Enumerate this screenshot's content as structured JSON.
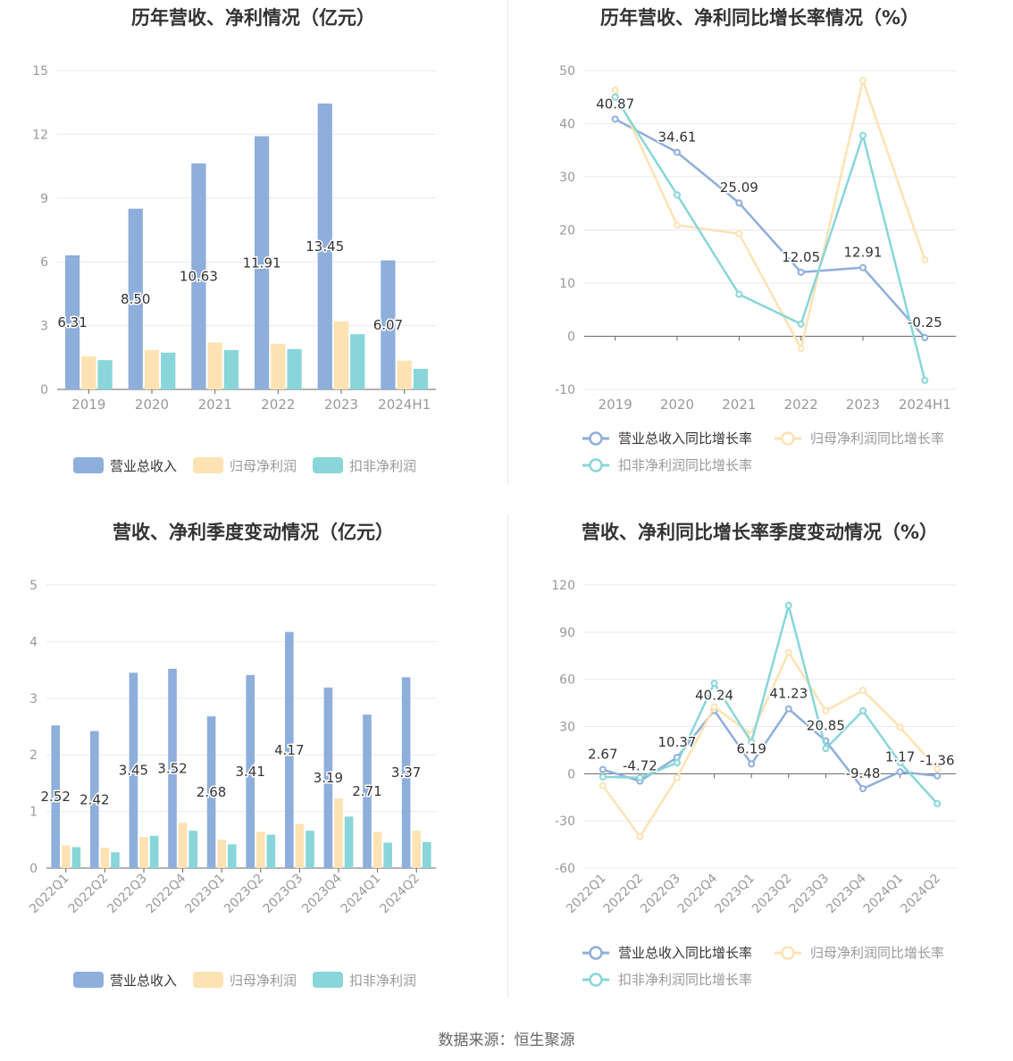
{
  "footer": "数据来源：恒生聚源",
  "colors": {
    "revenue": "#8eaedb",
    "parent_net": "#fde2b3",
    "deducted_net": "#88d6d9",
    "rev_line": "#8eaedb",
    "parent_line": "#fde2b3",
    "deducted_line": "#88d6d9"
  },
  "chart_data": [
    {
      "type": "bar",
      "title": "历年营收、净利情况（亿元）",
      "categories": [
        "2019",
        "2020",
        "2021",
        "2022",
        "2023",
        "2024H1"
      ],
      "ylim": [
        0,
        15
      ],
      "yticks": [
        0,
        3,
        6,
        9,
        12,
        15
      ],
      "grid": true,
      "legend_position": "bottom",
      "series": [
        {
          "name": "营业总收入",
          "values": [
            6.31,
            8.5,
            10.63,
            11.91,
            13.45,
            6.07
          ],
          "labels": [
            "6.31",
            "8.50",
            "10.63",
            "11.91",
            "13.45",
            "6.07"
          ]
        },
        {
          "name": "归母净利润",
          "values": [
            1.55,
            1.85,
            2.2,
            2.15,
            3.2,
            1.35
          ]
        },
        {
          "name": "扣非净利润",
          "values": [
            1.38,
            1.73,
            1.85,
            1.9,
            2.6,
            0.97
          ]
        }
      ]
    },
    {
      "type": "line",
      "title": "历年营收、净利同比增长率情况（%）",
      "categories": [
        "2019",
        "2020",
        "2021",
        "2022",
        "2023",
        "2024H1"
      ],
      "ylim": [
        -10,
        50
      ],
      "yticks": [
        -10,
        0,
        10,
        20,
        30,
        40,
        50
      ],
      "grid": true,
      "legend_position": "bottom",
      "series": [
        {
          "name": "营业总收入同比增长率",
          "values": [
            40.87,
            34.61,
            25.09,
            12.05,
            12.91,
            -0.25
          ],
          "labels": [
            "40.87",
            "34.61",
            "25.09",
            "12.05",
            "12.91",
            "-0.25"
          ]
        },
        {
          "name": "归母净利润同比增长率",
          "values": [
            46.3,
            20.9,
            19.3,
            -2.3,
            48.1,
            14.4
          ]
        },
        {
          "name": "扣非净利润同比增长率",
          "values": [
            45.0,
            26.6,
            7.9,
            2.3,
            37.8,
            -8.3
          ]
        }
      ]
    },
    {
      "type": "bar",
      "title": "营收、净利季度变动情况（亿元）",
      "categories": [
        "2022Q1",
        "2022Q2",
        "2022Q3",
        "2022Q4",
        "2023Q1",
        "2023Q2",
        "2023Q3",
        "2023Q4",
        "2024Q1",
        "2024Q2"
      ],
      "ylim": [
        0,
        5
      ],
      "yticks": [
        0,
        1,
        2,
        3,
        4,
        5
      ],
      "grid": true,
      "legend_position": "bottom",
      "series": [
        {
          "name": "营业总收入",
          "values": [
            2.52,
            2.42,
            3.45,
            3.52,
            2.68,
            3.41,
            4.17,
            3.19,
            2.71,
            3.37
          ],
          "labels": [
            "2.52",
            "2.42",
            "3.45",
            "3.52",
            "2.68",
            "3.41",
            "4.17",
            "3.19",
            "2.71",
            "3.37"
          ]
        },
        {
          "name": "归母净利润",
          "values": [
            0.4,
            0.36,
            0.55,
            0.8,
            0.5,
            0.64,
            0.78,
            1.23,
            0.64,
            0.66
          ]
        },
        {
          "name": "扣非净利润",
          "values": [
            0.37,
            0.28,
            0.57,
            0.66,
            0.42,
            0.59,
            0.66,
            0.91,
            0.45,
            0.46
          ]
        }
      ]
    },
    {
      "type": "line",
      "title": "营收、净利同比增长率季度变动情况（%）",
      "categories": [
        "2022Q1",
        "2022Q2",
        "2022Q3",
        "2022Q4",
        "2023Q1",
        "2023Q2",
        "2023Q3",
        "2023Q4",
        "2024Q1",
        "2024Q2"
      ],
      "ylim": [
        -60,
        120
      ],
      "yticks": [
        -60,
        -30,
        0,
        30,
        60,
        90,
        120
      ],
      "grid": true,
      "legend_position": "bottom",
      "series": [
        {
          "name": "营业总收入同比增长率",
          "values": [
            2.67,
            -4.72,
            10.37,
            40.24,
            6.19,
            41.23,
            20.85,
            -9.48,
            1.17,
            -1.36
          ],
          "labels": [
            "2.67",
            "-4.72",
            "10.37",
            "40.24",
            "6.19",
            "41.23",
            "20.85",
            "-9.48",
            "1.17",
            "-1.36"
          ]
        },
        {
          "name": "归母净利润同比增长率",
          "values": [
            -7.5,
            -40.0,
            -2.5,
            42.5,
            25.0,
            77.0,
            40.0,
            53.0,
            29.5,
            3.0
          ]
        },
        {
          "name": "扣非净利润同比增长率",
          "values": [
            -2.0,
            -2.5,
            7.0,
            57.5,
            20.0,
            107.0,
            16.0,
            40.0,
            7.0,
            -19.0
          ]
        }
      ]
    }
  ]
}
